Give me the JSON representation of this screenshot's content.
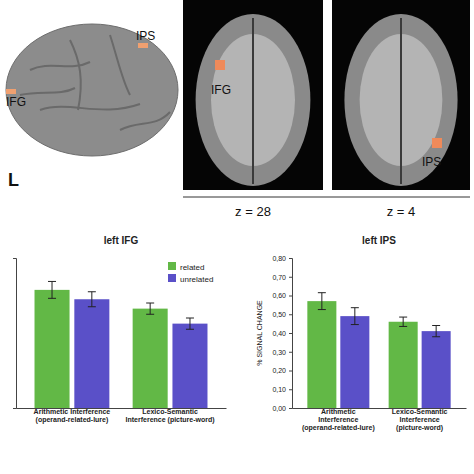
{
  "brain_panels": {
    "surface": {
      "hemisphere": "L",
      "regions": [
        "IFG",
        "IPS"
      ]
    },
    "slices": [
      {
        "label": "z = 28",
        "regions": [
          "IFG"
        ]
      },
      {
        "label": "z = 4",
        "regions": [
          "IPS"
        ]
      }
    ]
  },
  "chart_data": [
    {
      "type": "bar",
      "title": "left IFG",
      "categories": [
        "Arithmetic Interference (operand-related-lure)",
        "Lexico-Semantic Interference (picture-word)"
      ],
      "series": [
        {
          "name": "related",
          "color": "#62b846",
          "values": [
            0.63,
            0.53
          ],
          "errors": [
            0.045,
            0.03
          ]
        },
        {
          "name": "unrelated",
          "color": "#5a50c8",
          "values": [
            0.58,
            0.45
          ],
          "errors": [
            0.04,
            0.03
          ]
        }
      ],
      "ylim": [
        0,
        0.8
      ],
      "tick_labels": "x",
      "legend": "top-right"
    },
    {
      "type": "bar",
      "title": "left IPS",
      "y_label": "% SIGNAL CHANGE",
      "categories": [
        "Arithmetic Interference (operand-related-lure)",
        "Lexico-Semantic Interference (picture-word)"
      ],
      "series": [
        {
          "color": "#62b846",
          "values": [
            0.57,
            0.46
          ],
          "errors": [
            0.045,
            0.025
          ]
        },
        {
          "color": "#5a50c8",
          "values": [
            0.49,
            0.41
          ],
          "errors": [
            0.045,
            0.03
          ]
        }
      ],
      "ylim": [
        0,
        0.8
      ],
      "yticks": [
        {
          "value": 0,
          "label": "0,00"
        },
        {
          "value": 0.1,
          "label": "0,10"
        },
        {
          "value": 0.2,
          "label": "0,20"
        },
        {
          "value": 0.3,
          "label": "0,30"
        },
        {
          "value": 0.4,
          "label": "0,40"
        },
        {
          "value": 0.5,
          "label": "0,50"
        },
        {
          "value": 0.6,
          "label": "0,60"
        },
        {
          "value": 0.7,
          "label": "0,70"
        },
        {
          "value": 0.8,
          "label": "0,80"
        }
      ]
    }
  ]
}
